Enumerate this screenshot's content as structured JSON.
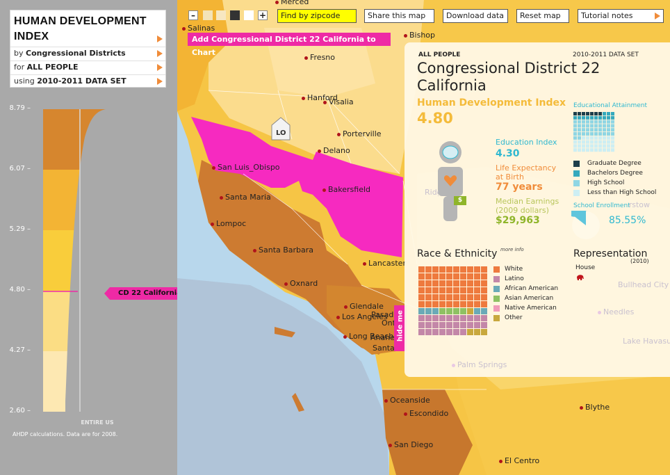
{
  "left_panel": {
    "title": "HUMAN DEVELOPMENT INDEX",
    "by_label": "by",
    "by_value": "Congressional Districts",
    "for_label": "for",
    "for_value": "ALL PEOPLE",
    "using_label": "using",
    "using_value": "2010-2011 DATA SET",
    "y_ticks": [
      "8.79 –",
      "6.07 –",
      "5.29 –",
      "4.80 –",
      "4.27 –",
      "2.60 –"
    ],
    "entire_us": "ENTIRE US",
    "footnote": "AHDP calculations. Data are for 2008.",
    "marker_label": "CD 22 California: 4.80"
  },
  "chart_data": {
    "type": "area",
    "title": "",
    "ylabel": "",
    "ylim": [
      2.6,
      8.79
    ],
    "ticks": [
      8.79,
      6.07,
      5.29,
      4.8,
      4.27,
      2.6
    ],
    "band_colors": [
      "#d6862e",
      "#f3b434",
      "#f9cd3b",
      "#fbdd84",
      "#fde8b2"
    ],
    "marker_value": 4.8,
    "marker_label": "CD 22 California: 4.80"
  },
  "toolbar": {
    "zoom_out": "–",
    "zoom_in": "+",
    "zipcode_placeholder": "Find by zipcode",
    "share": "Share this map",
    "download": "Download data",
    "reset": "Reset map",
    "tutorial": "Tutorial notes"
  },
  "map": {
    "add_to_chart": "Add Congressional District 22 California to Chart",
    "lo_label": "LO",
    "hide_me": "hide me",
    "cities": [
      "Merced",
      "Salinas",
      "Bishop",
      "Fresno",
      "Hanford",
      "Visalia",
      "Porterville",
      "Delano",
      "San Luis_Obispo",
      "Bakersfield",
      "Santa Maria",
      "Lompoc",
      "Santa Barbara",
      "Lancaster",
      "Oxnard",
      "Glendale",
      "Los Angeles",
      "Pasadena",
      "Ontario",
      "Long Beach",
      "Anaheim",
      "Santa Ana",
      "Oceanside",
      "Escondido",
      "San Diego",
      "El Centro",
      "Blythe"
    ],
    "faint_cities": [
      "Ridgecrest",
      "Barstow",
      "Bullhead City",
      "Needles",
      "Lake Havasu",
      "Palm Springs"
    ]
  },
  "info": {
    "audience": "ALL PEOPLE",
    "dataset": "2010-2011 DATA SET",
    "district_line1": "Congressional District 22",
    "district_line2": "California",
    "hdi_label": "Human Development Index",
    "hdi_value": "4.80",
    "education_label": "Education Index",
    "education_value": "4.30",
    "life_label_1": "Life Expectancy",
    "life_label_2": "at Birth",
    "life_value": "77 years",
    "earnings_label_1": "Median Earnings",
    "earnings_label_2": "(2009 dollars)",
    "earnings_value": "$29,963",
    "dollar_icon": "$",
    "ed_attainment_label": "Educational Attainment",
    "ed_legend": [
      "Graduate Degree",
      "Bachelors Degree",
      "High School",
      "Less than High School"
    ],
    "ed_colors": [
      "#1d3e4a",
      "#35a9bd",
      "#8fd6e4",
      "#cdeef3"
    ],
    "enrollment_label": "School Enrollment",
    "enrollment_value": "85.55%",
    "enrollment_fraction": 0.8555,
    "race_label": "Race & Ethnicity",
    "more_info": "more info",
    "race_legend": [
      "White",
      "Latino",
      "African American",
      "Asian American",
      "Native American",
      "Other"
    ],
    "race_colors": [
      "#ee7a3e",
      "#c387a8",
      "#6aaab7",
      "#8ec163",
      "#f19ab9",
      "#c8a83d"
    ],
    "representation_label": "Representation",
    "representation_year": "(2010)",
    "house_label": "House",
    "house_icon": "elephant-icon"
  },
  "colors": {
    "accent_pink": "#ee2aa5",
    "hdi_gold": "#f4bb3a",
    "education_teal": "#2fb8d0",
    "life_orange": "#f08c3a",
    "earnings_green": "#8fb52a"
  }
}
